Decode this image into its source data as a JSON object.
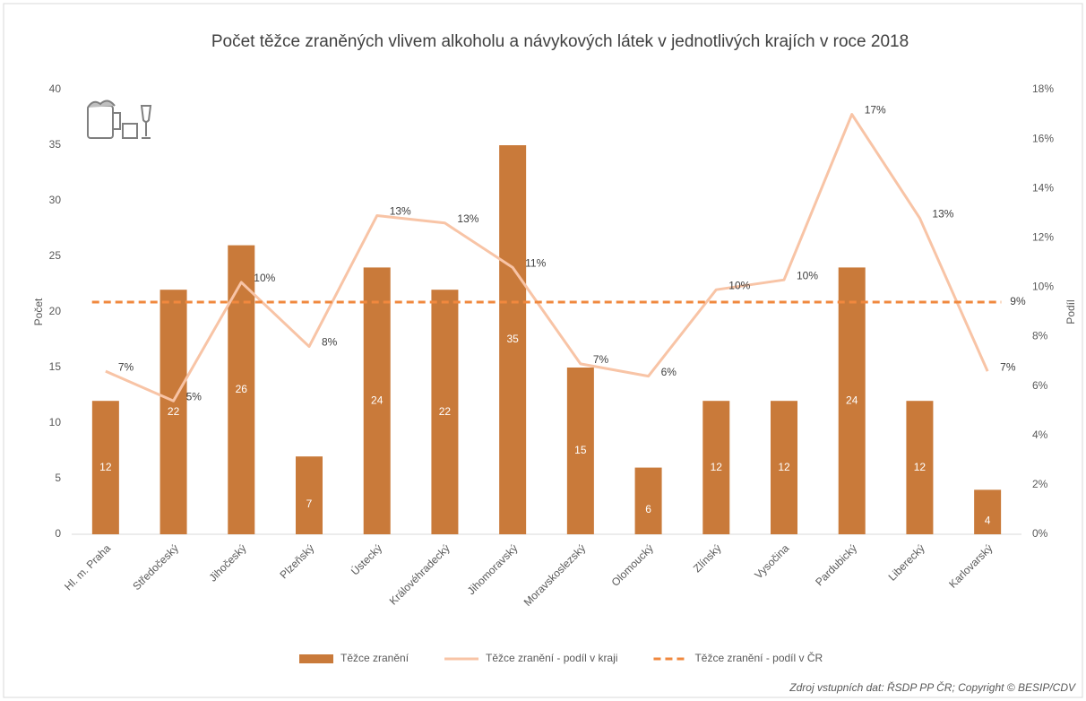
{
  "chart_data": {
    "type": "bar",
    "title": "Počet těžce zraněných vlivem alkoholu a návykových látek v jednotlivých krajích v roce 2018",
    "y_label": "Počet",
    "y2_label": "Podíl",
    "source": "Zdroj vstupních dat: ŘSDP PP ČR; Copyright © BESIP/CDV",
    "categories": [
      "Hl. m. Praha",
      "Středočeský",
      "Jihočeský",
      "Plzeňský",
      "Ústecký",
      "Královéhradecký",
      "Jihomoravský",
      "Moravskoslezský",
      "Olomoucký",
      "Zlínský",
      "Vysočina",
      "Pardubický",
      "Liberecký",
      "Karlovarský"
    ],
    "series": [
      {
        "name": "Těžce zranění",
        "type": "bar",
        "color": "#c97a3a",
        "values": [
          12,
          22,
          26,
          7,
          24,
          22,
          35,
          15,
          6,
          12,
          12,
          24,
          12,
          4
        ]
      },
      {
        "name": "Těžce zranění - podíl v kraji",
        "type": "line",
        "axis": "y2",
        "color": "#f8c4a6",
        "values": [
          6.6,
          5.4,
          10.2,
          7.6,
          12.9,
          12.6,
          10.8,
          6.9,
          6.4,
          9.9,
          10.3,
          17.0,
          12.8,
          6.6
        ],
        "value_labels": [
          "7%",
          "5%",
          "10%",
          "8%",
          "13%",
          "13%",
          "11%",
          "7%",
          "6%",
          "10%",
          "10%",
          "17%",
          "13%",
          "7%"
        ]
      }
    ],
    "reference_line": {
      "name": "Těžce zranění - podíl v ČR",
      "axis": "y2",
      "color": "#f0883e",
      "dashed": true,
      "value": 9.4,
      "value_label": "9%"
    },
    "ylim": [
      0,
      40
    ],
    "yticks": [
      0,
      5,
      10,
      15,
      20,
      25,
      30,
      35,
      40
    ],
    "y2lim": [
      0,
      18
    ],
    "y2ticks": [
      {
        "value": 0,
        "label": "0%"
      },
      {
        "value": 2,
        "label": "2%"
      },
      {
        "value": 4,
        "label": "4%"
      },
      {
        "value": 6,
        "label": "6%"
      },
      {
        "value": 8,
        "label": "8%"
      },
      {
        "value": 10,
        "label": "10%"
      },
      {
        "value": 12,
        "label": "12%"
      },
      {
        "value": 14,
        "label": "14%"
      },
      {
        "value": 16,
        "label": "16%"
      },
      {
        "value": 18,
        "label": "18%"
      }
    ],
    "grid": false
  }
}
